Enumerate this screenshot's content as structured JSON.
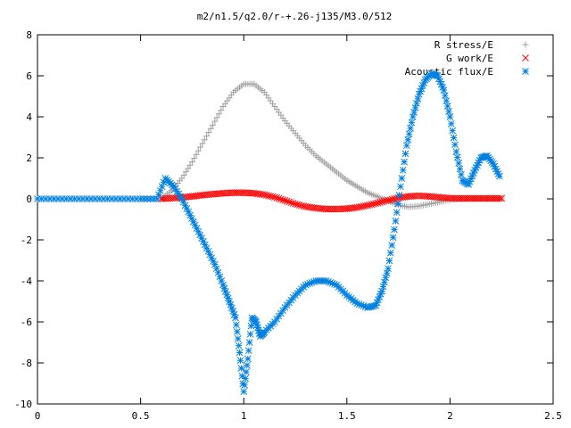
{
  "chart_data": {
    "type": "scatter",
    "title": "m2/n1.5/q2.0/r-+.26-j135/M3.0/512",
    "xlabel": "",
    "ylabel": "",
    "xlim": [
      0,
      2.5
    ],
    "ylim": [
      -10,
      8
    ],
    "grid": false,
    "legend_position": "top-right",
    "x_ticks": [
      "0",
      "0.5",
      "1",
      "1.5",
      "2",
      "2.5"
    ],
    "y_ticks": [
      "-10",
      "-8",
      "-6",
      "-4",
      "-2",
      "0",
      "2",
      "4",
      "6",
      "8"
    ],
    "series": [
      {
        "name": "R stress/E",
        "marker": "+",
        "color": "#a0a0a0",
        "x": [
          0.6,
          0.65,
          0.7,
          0.75,
          0.8,
          0.85,
          0.9,
          0.95,
          1.0,
          1.05,
          1.1,
          1.15,
          1.2,
          1.25,
          1.3,
          1.35,
          1.4,
          1.45,
          1.5,
          1.55,
          1.6,
          1.65,
          1.7,
          1.75,
          1.8,
          1.85,
          1.9,
          1.95,
          2.0,
          2.05,
          2.1,
          2.15,
          2.2,
          2.25
        ],
        "y": [
          0.0,
          0.4,
          1.0,
          1.8,
          2.7,
          3.6,
          4.5,
          5.2,
          5.6,
          5.6,
          5.2,
          4.5,
          3.8,
          3.2,
          2.6,
          2.1,
          1.7,
          1.3,
          0.9,
          0.6,
          0.3,
          0.1,
          -0.1,
          -0.3,
          -0.4,
          -0.35,
          -0.25,
          -0.15,
          -0.05,
          0.0,
          0.0,
          0.0,
          0.0,
          0.0
        ]
      },
      {
        "name": "G work/E",
        "marker": "x",
        "color": "#ff0000",
        "x": [
          0.6,
          0.65,
          0.7,
          0.75,
          0.8,
          0.85,
          0.9,
          0.95,
          1.0,
          1.05,
          1.1,
          1.15,
          1.2,
          1.25,
          1.3,
          1.35,
          1.4,
          1.45,
          1.5,
          1.55,
          1.6,
          1.65,
          1.7,
          1.75,
          1.8,
          1.85,
          1.9,
          1.95,
          2.0,
          2.05,
          2.1,
          2.15,
          2.2,
          2.25
        ],
        "y": [
          0.0,
          0.03,
          0.07,
          0.12,
          0.18,
          0.23,
          0.27,
          0.3,
          0.3,
          0.27,
          0.2,
          0.08,
          -0.08,
          -0.25,
          -0.38,
          -0.45,
          -0.5,
          -0.5,
          -0.48,
          -0.42,
          -0.32,
          -0.2,
          -0.07,
          0.05,
          0.12,
          0.15,
          0.12,
          0.07,
          0.03,
          0.02,
          0.02,
          0.02,
          0.02,
          0.02
        ]
      },
      {
        "name": "Acoustic flux/E",
        "marker": "*",
        "color": "#0080e0",
        "x": [
          0.0,
          0.1,
          0.2,
          0.3,
          0.4,
          0.5,
          0.58,
          0.62,
          0.66,
          0.7,
          0.74,
          0.78,
          0.82,
          0.86,
          0.9,
          0.93,
          0.96,
          0.98,
          1.0,
          1.02,
          1.04,
          1.06,
          1.08,
          1.1,
          1.15,
          1.2,
          1.25,
          1.3,
          1.35,
          1.4,
          1.45,
          1.5,
          1.55,
          1.6,
          1.64,
          1.67,
          1.7,
          1.73,
          1.76,
          1.79,
          1.82,
          1.85,
          1.88,
          1.91,
          1.94,
          1.97,
          2.0,
          2.03,
          2.06,
          2.09,
          2.12,
          2.15,
          2.18,
          2.21,
          2.24
        ],
        "y": [
          0.0,
          0.0,
          0.0,
          0.0,
          0.0,
          0.0,
          0.0,
          1.0,
          0.6,
          0.0,
          -0.8,
          -1.6,
          -2.4,
          -3.2,
          -4.2,
          -5.0,
          -5.8,
          -7.5,
          -9.4,
          -7.8,
          -5.8,
          -6.0,
          -6.7,
          -6.5,
          -6.0,
          -5.3,
          -4.7,
          -4.2,
          -4.0,
          -4.0,
          -4.2,
          -4.7,
          -5.1,
          -5.3,
          -5.2,
          -4.5,
          -3.4,
          -1.5,
          0.6,
          2.6,
          4.0,
          5.1,
          5.8,
          6.1,
          6.0,
          5.3,
          4.0,
          2.3,
          0.9,
          0.7,
          1.4,
          2.0,
          2.1,
          1.7,
          1.1
        ]
      }
    ]
  }
}
